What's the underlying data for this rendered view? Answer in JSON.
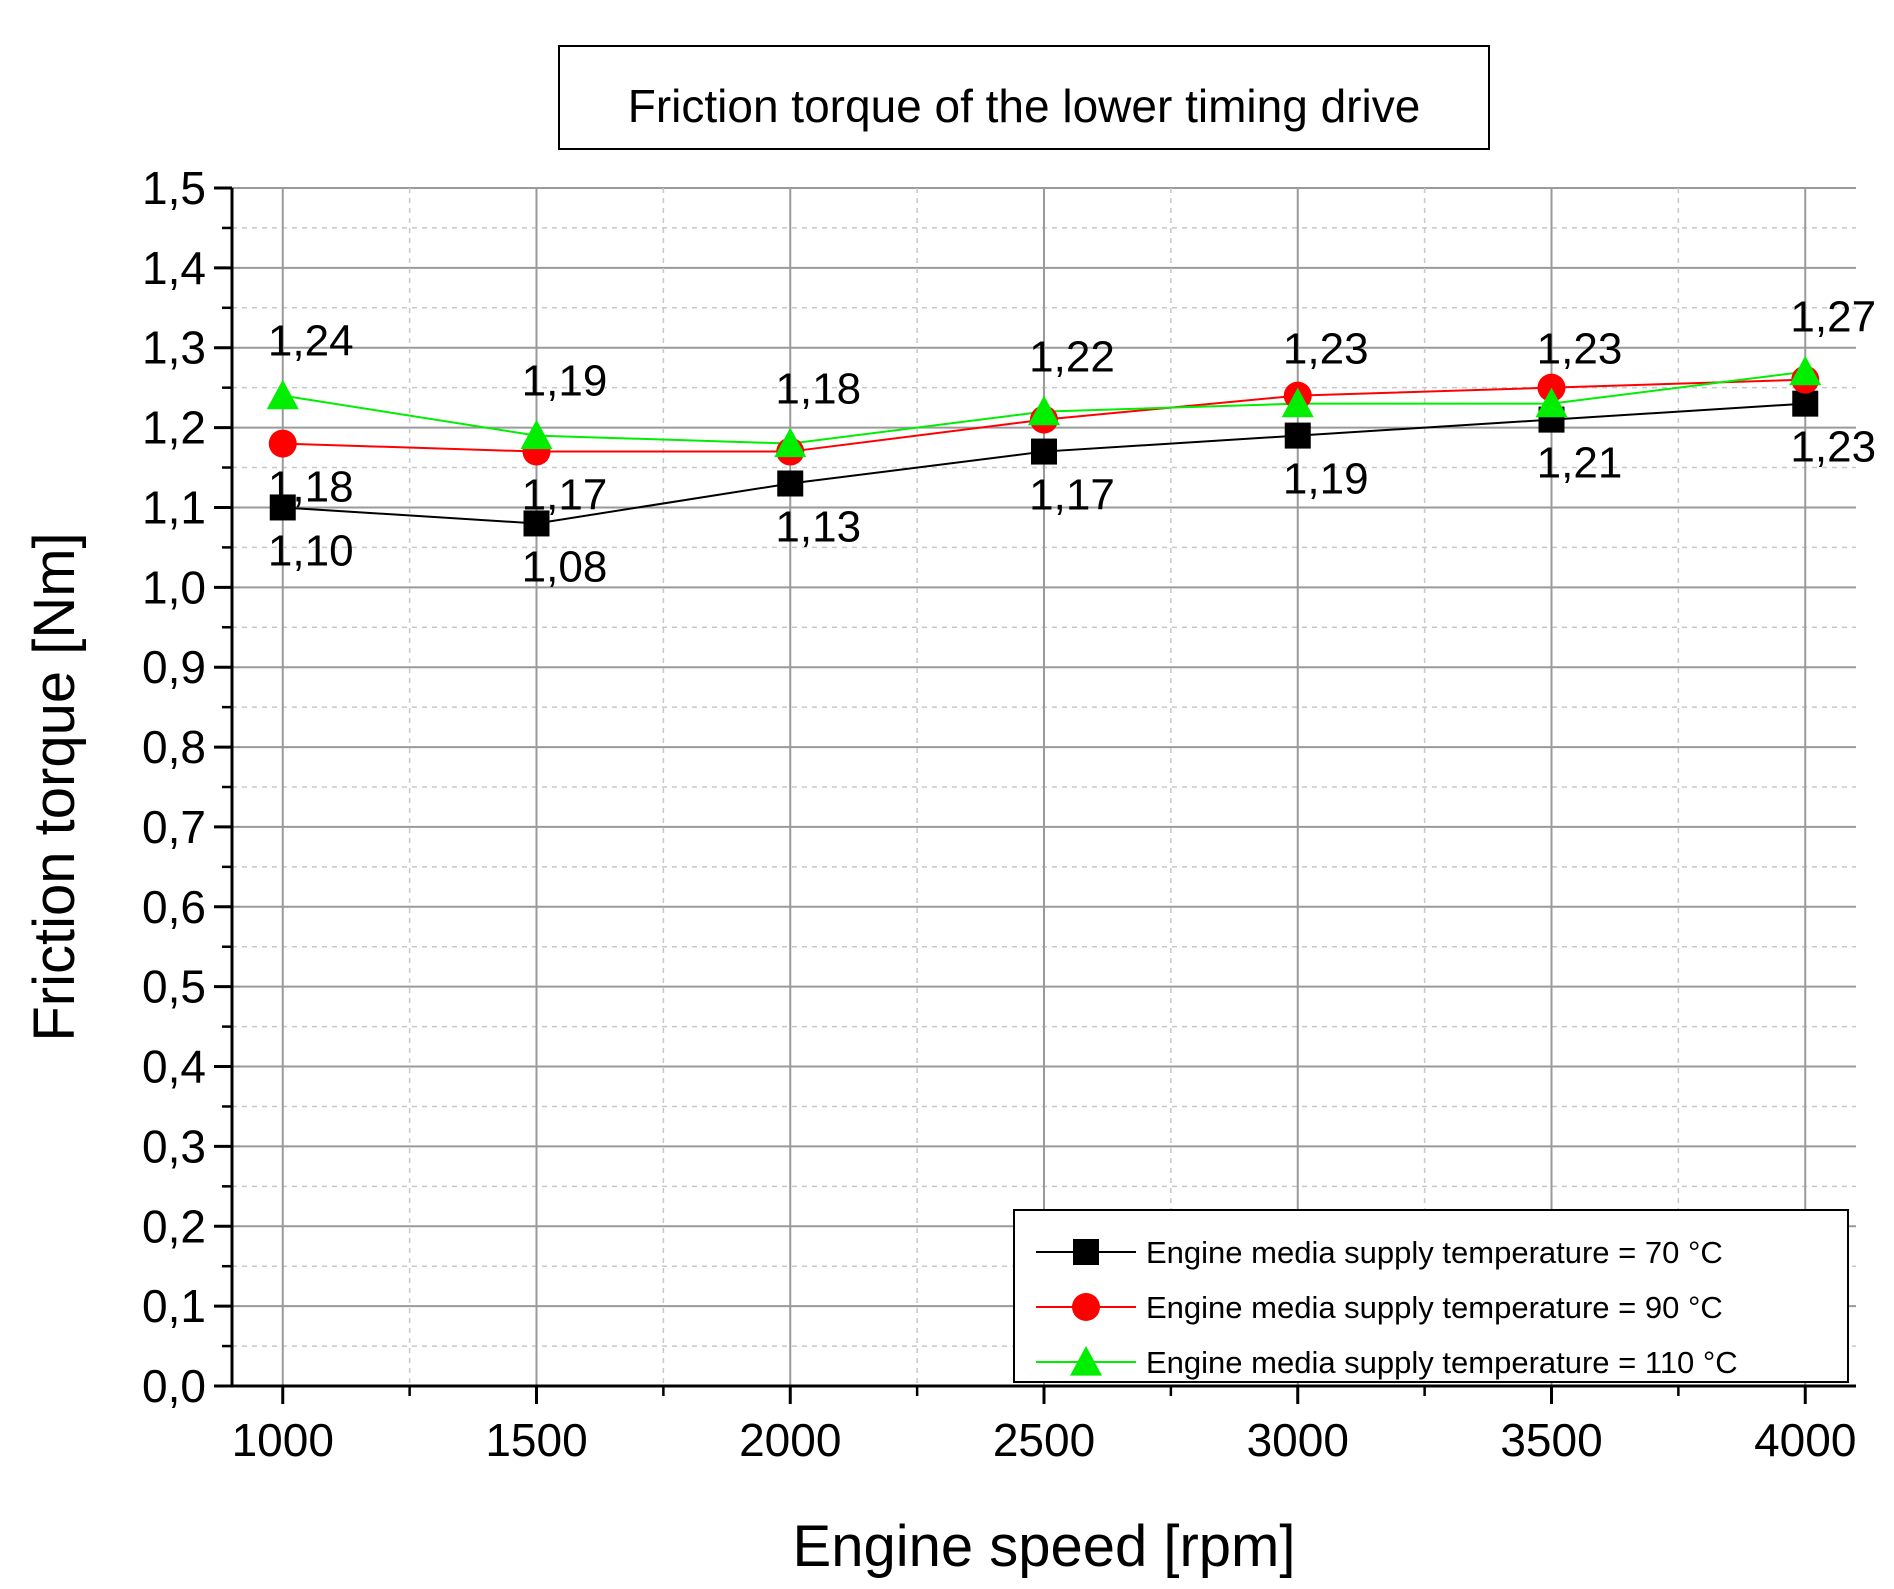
{
  "chart_data": {
    "type": "line",
    "title": "Friction torque of the lower timing drive",
    "xlabel": "Engine speed [rpm]",
    "ylabel": "Friction torque [Nm]",
    "x": [
      1000,
      1500,
      2000,
      2500,
      3000,
      3500,
      4000
    ],
    "x_tick_labels": [
      "1000",
      "1500",
      "2000",
      "2500",
      "3000",
      "3500",
      "4000"
    ],
    "xlim": [
      900,
      4100
    ],
    "ylim": [
      0,
      1.5
    ],
    "y_ticks": [
      0,
      0.1,
      0.2,
      0.3,
      0.4,
      0.5,
      0.6,
      0.7,
      0.8,
      0.9,
      1.0,
      1.1,
      1.2,
      1.3,
      1.4,
      1.5
    ],
    "y_tick_labels": [
      "0,0",
      "0,1",
      "0,2",
      "0,3",
      "0,4",
      "0,5",
      "0,6",
      "0,7",
      "0,8",
      "0,9",
      "1,0",
      "1,1",
      "1,2",
      "1,3",
      "1,4",
      "1,5"
    ],
    "grid": true,
    "legend_position": "bottom-right",
    "series": [
      {
        "name": "Engine media supply temperature = 70 °C",
        "color": "#000000",
        "marker": "square",
        "values": [
          1.1,
          1.08,
          1.13,
          1.17,
          1.19,
          1.21,
          1.23
        ],
        "labels": [
          "1,10",
          "1,08",
          "1,13",
          "1,17",
          "1,19",
          "1,21",
          "1,23"
        ],
        "label_side": "below"
      },
      {
        "name": "Engine media supply temperature = 90 °C",
        "color": "#ff0000",
        "marker": "circle",
        "values": [
          1.18,
          1.17,
          1.17,
          1.21,
          1.24,
          1.25,
          1.26
        ],
        "labels": [
          "1,18",
          "1,17",
          "",
          "",
          "",
          "",
          ""
        ],
        "label_side": "below"
      },
      {
        "name": "Engine media supply temperature = 110 °C",
        "color": "#00ee00",
        "marker": "triangle",
        "values": [
          1.24,
          1.19,
          1.18,
          1.22,
          1.23,
          1.23,
          1.27
        ],
        "labels": [
          "1,24",
          "1,19",
          "1,18",
          "1,22",
          "1,23",
          "1,23",
          "1,27"
        ],
        "label_side": "above"
      }
    ]
  }
}
